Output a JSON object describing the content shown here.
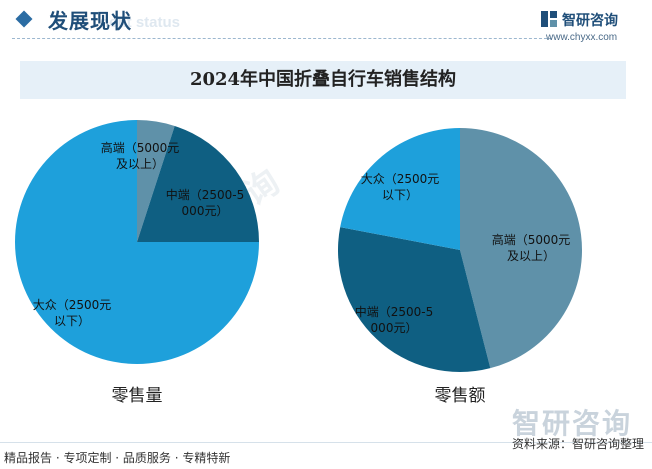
{
  "header": {
    "title": "发展现状",
    "subtitle": "nent status"
  },
  "brand": {
    "name": "智研咨询",
    "url": "www.chyxx.com",
    "watermark": "智研咨询"
  },
  "footer": {
    "left": "精品报告 · 专项定制 · 品质服务 · 专精特新",
    "source": "资料来源：智研咨询整理"
  },
  "colors": {
    "high": "#5f91a9",
    "mid": "#0f5f82",
    "mass": "#1ea0db",
    "title_band": "#e6f0f8"
  },
  "chart_data": [
    {
      "type": "pie",
      "title": "2024年中国折叠自行车销售结构",
      "caption": "零售量",
      "slices": [
        {
          "label": "高端（5000元及以上）",
          "value": 5
        },
        {
          "label": "中端（2500-5000元）",
          "value": 20
        },
        {
          "label": "大众（2500元以下）",
          "value": 75
        }
      ]
    },
    {
      "type": "pie",
      "title": "2024年中国折叠自行车销售结构",
      "caption": "零售额",
      "slices": [
        {
          "label": "高端（5000元及以上）",
          "value": 46
        },
        {
          "label": "中端（2500-5000元）",
          "value": 32
        },
        {
          "label": "大众（2500元以下）",
          "value": 22
        }
      ]
    }
  ]
}
